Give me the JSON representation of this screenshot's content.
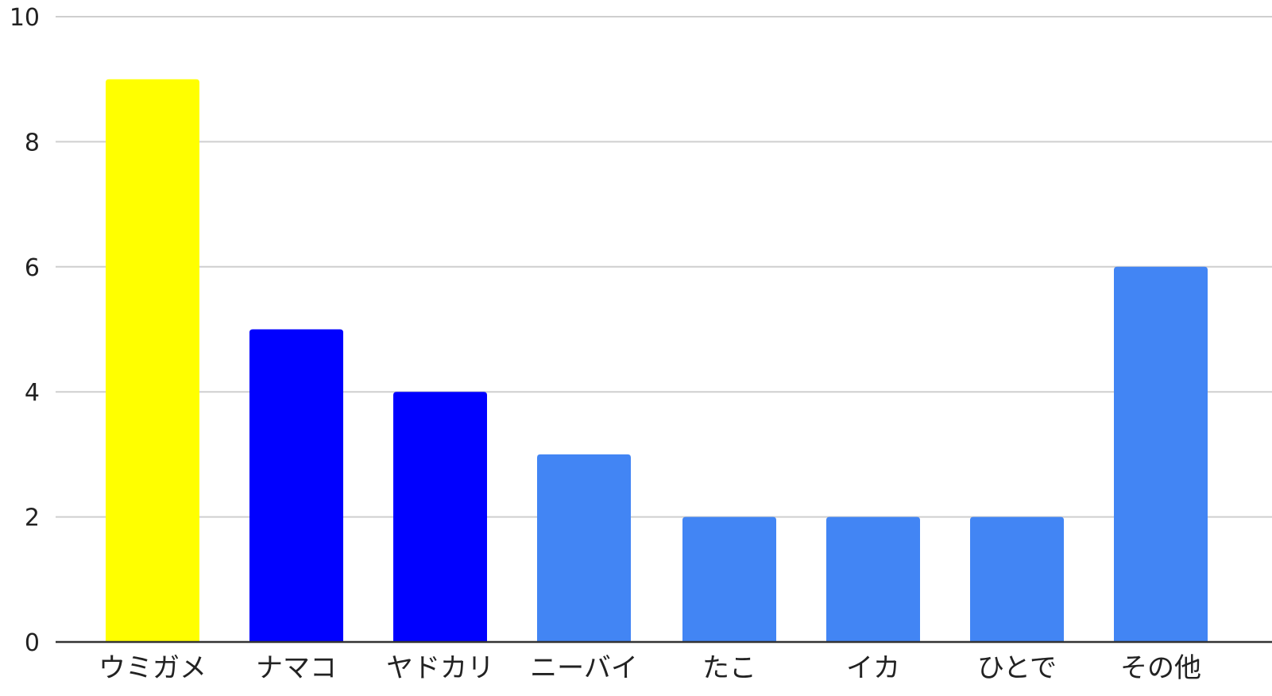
{
  "chart_data": {
    "type": "bar",
    "title": "",
    "xlabel": "",
    "ylabel": "",
    "categories": [
      "ウミガメ",
      "ナマコ",
      "ヤドカリ",
      "ニーバイ",
      "たこ",
      "イカ",
      "ひとで",
      "その他"
    ],
    "values": [
      9,
      5,
      4,
      3,
      2,
      2,
      2,
      6
    ],
    "bar_colors": [
      "#ffff00",
      "#0000ff",
      "#0000ff",
      "#4285f4",
      "#4285f4",
      "#4285f4",
      "#4285f4",
      "#4285f4"
    ],
    "ylim": [
      0,
      10
    ],
    "y_ticks": [
      "0",
      "2",
      "4",
      "6",
      "8",
      "10"
    ],
    "grid": true,
    "legend": "none"
  },
  "colors": {
    "grid": "#cfcfcf",
    "baseline": "#333333",
    "text": "#222222"
  }
}
